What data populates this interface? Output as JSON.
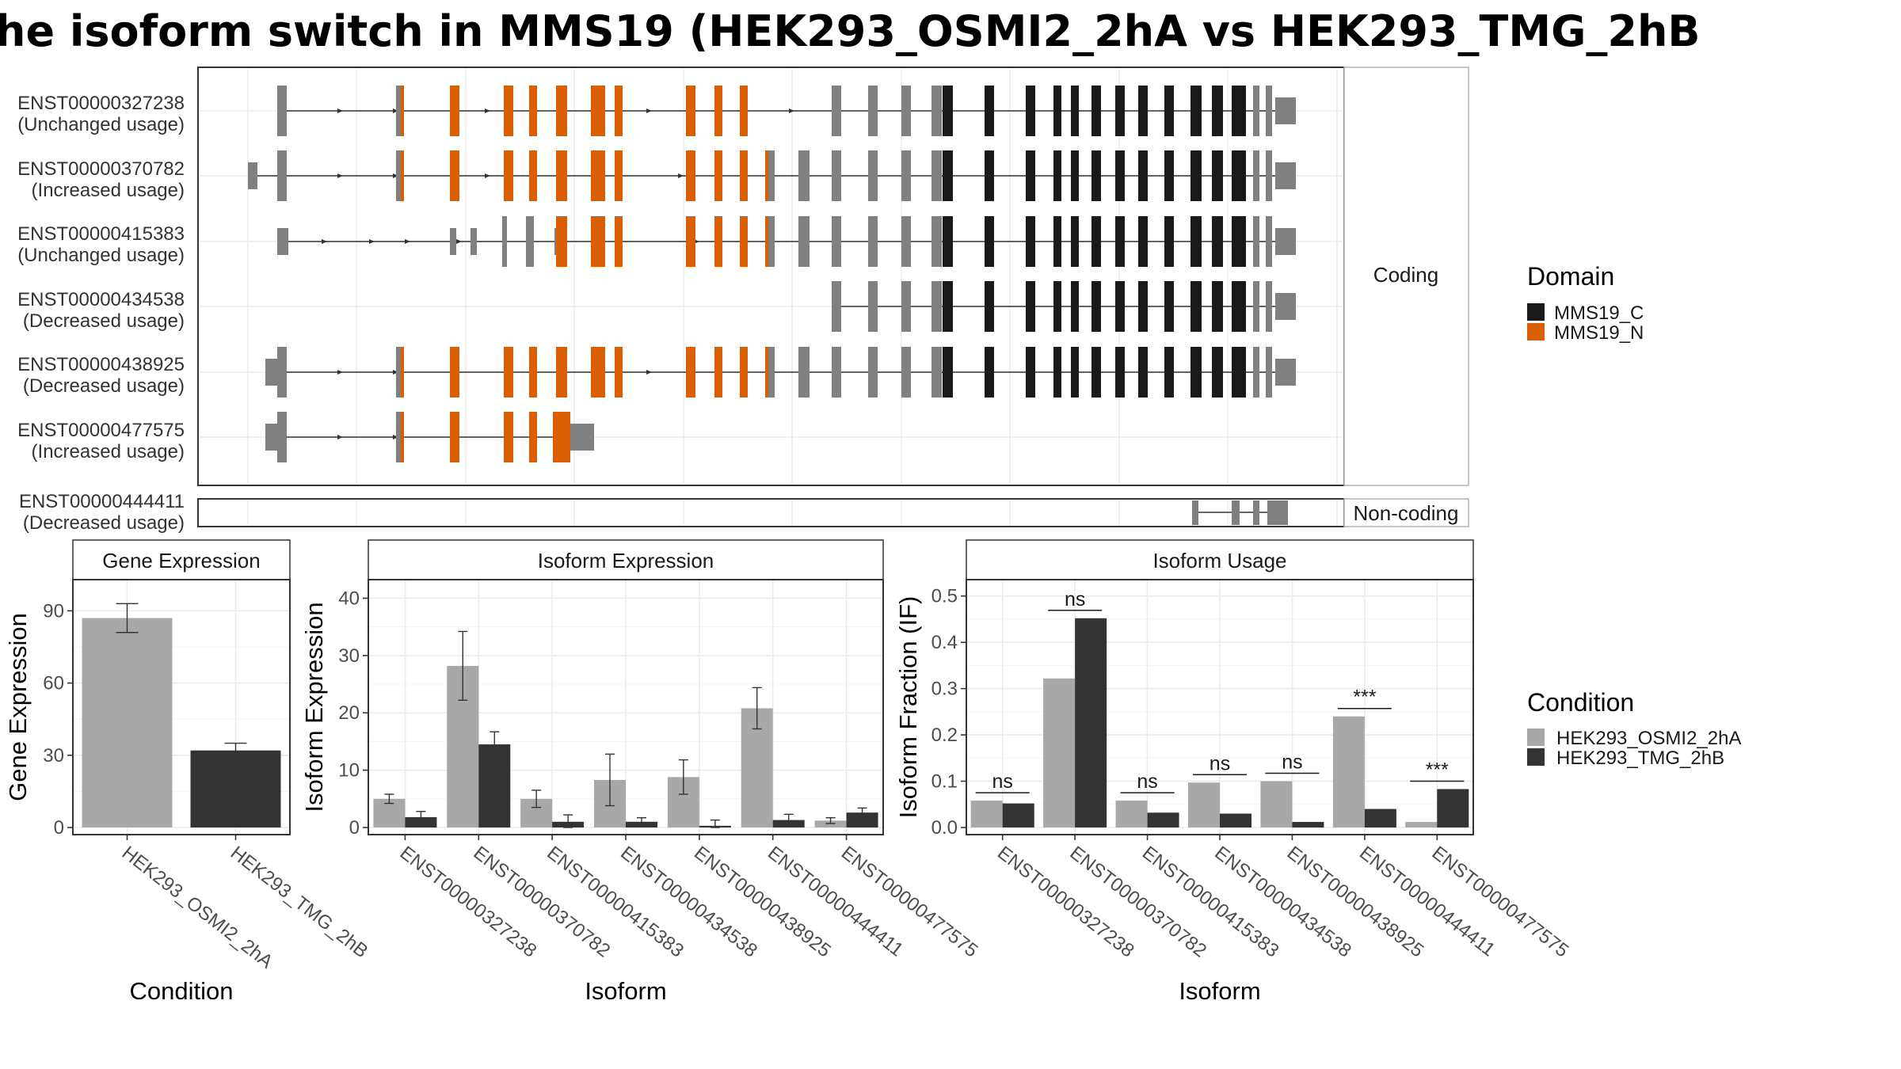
{
  "title": "he isoform switch in MMS19 (HEK293_OSMI2_2hA vs HEK293_TMG_2hB",
  "colors": {
    "coding_gray": "#808080",
    "mms19_c": "#1a1a1a",
    "mms19_n": "#d95f02",
    "cond_a": "#a8a8a8",
    "cond_b": "#333333"
  },
  "structure": {
    "coding_label": "Coding",
    "noncoding_label": "Non-coding",
    "isoforms": [
      {
        "id": "ENST00000327238",
        "usage": "(Unchanged usage)"
      },
      {
        "id": "ENST00000370782",
        "usage": "(Increased usage)"
      },
      {
        "id": "ENST00000415383",
        "usage": "(Unchanged usage)"
      },
      {
        "id": "ENST00000434538",
        "usage": "(Decreased usage)"
      },
      {
        "id": "ENST00000438925",
        "usage": "(Decreased usage)"
      },
      {
        "id": "ENST00000477575",
        "usage": "(Increased usage)"
      },
      {
        "id": "ENST00000444411",
        "usage": "(Decreased usage)"
      }
    ]
  },
  "domain_legend": {
    "title": "Domain",
    "items": [
      {
        "label": "MMS19_C",
        "color": "#1a1a1a"
      },
      {
        "label": "MMS19_N",
        "color": "#d95f02"
      }
    ]
  },
  "condition_legend": {
    "title": "Condition",
    "items": [
      {
        "label": "HEK293_OSMI2_2hA",
        "color": "#a8a8a8"
      },
      {
        "label": "HEK293_TMG_2hB",
        "color": "#333333"
      }
    ]
  },
  "chart_data": [
    {
      "type": "bar",
      "title": "Gene Expression",
      "xlabel": "Condition",
      "ylabel": "Gene Expression",
      "categories": [
        "HEK293_OSMI2_2hA",
        "HEK293_TMG_2hB"
      ],
      "values": [
        87,
        32
      ],
      "errors": [
        6,
        3
      ],
      "ylim": [
        0,
        100
      ],
      "yticks": [
        0,
        30,
        60,
        90
      ]
    },
    {
      "type": "bar",
      "title": "Isoform Expression",
      "xlabel": "Isoform",
      "ylabel": "Isoform Expression",
      "categories": [
        "ENST00000327238",
        "ENST00000370782",
        "ENST00000415383",
        "ENST00000434538",
        "ENST00000438925",
        "ENST00000444411",
        "ENST00000477575"
      ],
      "series": [
        {
          "name": "HEK293_OSMI2_2hA",
          "values": [
            5.0,
            28.2,
            5.0,
            8.3,
            8.8,
            20.8,
            1.2
          ],
          "errors": [
            0.8,
            6.0,
            1.5,
            4.5,
            3.0,
            3.6,
            0.5
          ]
        },
        {
          "name": "HEK293_TMG_2hB",
          "values": [
            1.8,
            14.5,
            1.0,
            1.0,
            0.3,
            1.3,
            2.6
          ],
          "errors": [
            1.0,
            2.2,
            1.2,
            0.7,
            1.0,
            1.0,
            0.8
          ]
        }
      ],
      "ylim": [
        0,
        42
      ],
      "yticks": [
        0,
        10,
        20,
        30,
        40
      ]
    },
    {
      "type": "bar",
      "title": "Isoform Usage",
      "xlabel": "Isoform",
      "ylabel": "Isoform Fraction (IF)",
      "categories": [
        "ENST00000327238",
        "ENST00000370782",
        "ENST00000415383",
        "ENST00000434538",
        "ENST00000438925",
        "ENST00000444411",
        "ENST00000477575"
      ],
      "series": [
        {
          "name": "HEK293_OSMI2_2hA",
          "values": [
            0.058,
            0.322,
            0.058,
            0.097,
            0.1,
            0.24,
            0.012
          ]
        },
        {
          "name": "HEK293_TMG_2hB",
          "values": [
            0.052,
            0.452,
            0.032,
            0.03,
            0.012,
            0.04,
            0.083
          ]
        }
      ],
      "significance": [
        "ns",
        "ns",
        "ns",
        "ns",
        "ns",
        "***",
        "***"
      ],
      "ylim": [
        0,
        0.52
      ],
      "yticks": [
        0.0,
        0.1,
        0.2,
        0.3,
        0.4,
        0.5
      ],
      "ytick_labels": [
        "0.0",
        "0.1",
        "0.2",
        "0.3",
        "0.4",
        "0.5"
      ]
    }
  ]
}
